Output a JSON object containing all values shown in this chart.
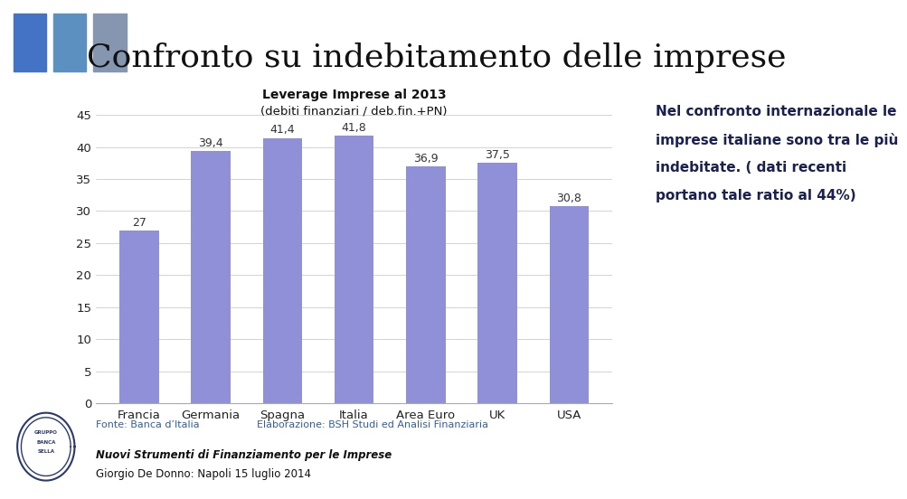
{
  "title": "Confronto su indebitamento delle imprese",
  "chart_title_line1": "Leverage Imprese al 2013",
  "chart_title_line2": "(debiti finanziari / deb.fin.+PN)",
  "categories": [
    "Francia",
    "Germania",
    "Spagna",
    "Italia",
    "Area Euro",
    "UK",
    "USA"
  ],
  "values": [
    27,
    39.4,
    41.4,
    41.8,
    36.9,
    37.5,
    30.8
  ],
  "bar_color": "#9090d8",
  "bar_edge_color": "#9090d8",
  "ylim": [
    0,
    45
  ],
  "yticks": [
    0,
    5,
    10,
    15,
    20,
    25,
    30,
    35,
    40,
    45
  ],
  "background_color": "#ffffff",
  "left_panel_color": "#dce8f0",
  "chart_bg_color": "#ffffff",
  "title_color": "#111111",
  "side_text_color": "#1a2050",
  "side_text": "Nel confronto internazionale le\nimprese italiane sono tra le più\nindebitate. ( dati recenti\nportano tale ratio al 44%)",
  "footer_left": "Fonte: Banca d’Italia",
  "footer_right": "Elaborazione: BSH Studi ed Analisi Finanziaria",
  "footer_italic_line1": "Nuovi Strumenti di Finanziamento per le Imprese",
  "footer_italic_line2": "Giorgio De Donno: Napoli 15 luglio 2014",
  "top_rect_color1": "#4472c4",
  "top_rect_color2": "#5b90c0",
  "top_rect_color3": "#8496b0",
  "grid_color": "#cccccc",
  "value_label_color": "#333333",
  "footer_link_color": "#3060a0",
  "chart_title_color": "#111111"
}
